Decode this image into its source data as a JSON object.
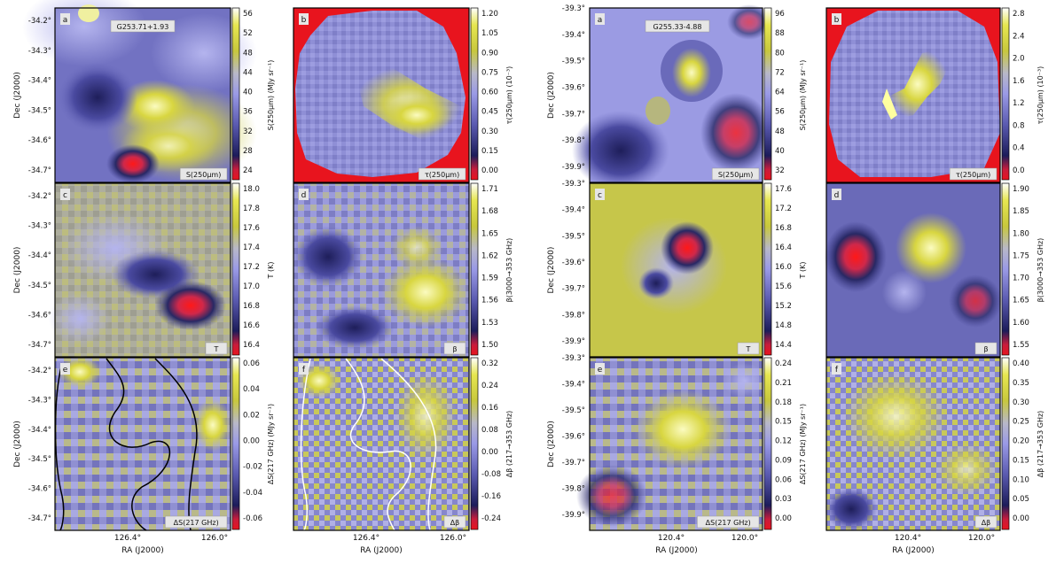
{
  "figure": {
    "left_group": {
      "field_label": "G253.71+1.93",
      "ylabel": "Dec (J2000)",
      "xlabel": "RA (J2000)",
      "y_ticks": [
        "-34.2°",
        "-34.3°",
        "-34.4°",
        "-34.5°",
        "-34.6°",
        "-34.7°"
      ],
      "x_ticks": [
        "126.4°",
        "126.0°"
      ]
    },
    "right_group": {
      "field_label": "G255.33-4.88",
      "ylabel": "Dec (J2000)",
      "xlabel": "RA (J2000)",
      "y_ticks_row1": [
        "-39.3°",
        "-39.4°",
        "-39.5°",
        "-39.6°",
        "-39.7°",
        "-39.8°",
        "-39.9°"
      ],
      "y_ticks_row2": [
        "-39.3°",
        "-39.4°",
        "-39.5°",
        "-39.6°",
        "-39.7°",
        "-39.8°",
        "-39.9°"
      ],
      "y_ticks_row3": [
        "-39.3°",
        "-39.4°",
        "-39.5°",
        "-39.6°",
        "-39.7°",
        "-39.8°",
        "-39.9°"
      ],
      "x_ticks": [
        "120.4°",
        "120.0°"
      ]
    }
  },
  "chart_data": [
    {
      "type": "heatmap",
      "panel": "a",
      "field": "G253.71+1.93",
      "tag": "S(250μm)",
      "colorbar_label": "S(250μm) (MJy sr⁻¹)",
      "colorbar_ticks": [
        "56",
        "52",
        "48",
        "44",
        "40",
        "36",
        "32",
        "28",
        "24"
      ]
    },
    {
      "type": "heatmap",
      "panel": "b",
      "field": "G253.71+1.93",
      "tag": "τ(250μm)",
      "colorbar_label": "τ(250μm) (10⁻³)",
      "colorbar_ticks": [
        "1.20",
        "1.05",
        "0.90",
        "0.75",
        "0.60",
        "0.45",
        "0.30",
        "0.15",
        "0.00"
      ]
    },
    {
      "type": "heatmap",
      "panel": "c",
      "field": "G253.71+1.93",
      "tag": "T",
      "colorbar_label": "T (K)",
      "colorbar_ticks": [
        "18.0",
        "17.8",
        "17.6",
        "17.4",
        "17.2",
        "17.0",
        "16.8",
        "16.6",
        "16.4"
      ]
    },
    {
      "type": "heatmap",
      "panel": "d",
      "field": "G253.71+1.93",
      "tag": "β",
      "colorbar_label": "β(3000→353 GHz)",
      "colorbar_ticks": [
        "1.71",
        "1.68",
        "1.65",
        "1.62",
        "1.59",
        "1.56",
        "1.53",
        "1.50"
      ]
    },
    {
      "type": "heatmap",
      "panel": "e",
      "field": "G253.71+1.93",
      "tag": "ΔS(217 GHz)",
      "colorbar_label": "ΔS(217 GHz) (MJy sr⁻¹)",
      "colorbar_ticks": [
        "0.06",
        "0.04",
        "0.02",
        "0.00",
        "-0.02",
        "-0.04",
        "-0.06"
      ]
    },
    {
      "type": "heatmap",
      "panel": "f",
      "field": "G253.71+1.93",
      "tag": "Δβ",
      "colorbar_label": "Δβ (217→353 GHz)",
      "colorbar_ticks": [
        "0.32",
        "0.24",
        "0.16",
        "0.08",
        "0.00",
        "-0.08",
        "-0.16",
        "-0.24"
      ]
    },
    {
      "type": "heatmap",
      "panel": "a",
      "field": "G255.33-4.88",
      "tag": "S(250μm)",
      "colorbar_label": "S(250μm) (MJy sr⁻¹)",
      "colorbar_ticks": [
        "96",
        "88",
        "80",
        "72",
        "64",
        "56",
        "48",
        "40",
        "32"
      ]
    },
    {
      "type": "heatmap",
      "panel": "b",
      "field": "G255.33-4.88",
      "tag": "τ(250μm)",
      "colorbar_label": "τ(250μm) (10⁻³)",
      "colorbar_ticks": [
        "2.8",
        "2.4",
        "2.0",
        "1.6",
        "1.2",
        "0.8",
        "0.4",
        "0.0"
      ]
    },
    {
      "type": "heatmap",
      "panel": "c",
      "field": "G255.33-4.88",
      "tag": "T",
      "colorbar_label": "T (K)",
      "colorbar_ticks": [
        "17.6",
        "17.2",
        "16.8",
        "16.4",
        "16.0",
        "15.6",
        "15.2",
        "14.8",
        "14.4"
      ]
    },
    {
      "type": "heatmap",
      "panel": "d",
      "field": "G255.33-4.88",
      "tag": "β",
      "colorbar_label": "β(3000→353 GHz)",
      "colorbar_ticks": [
        "1.90",
        "1.85",
        "1.80",
        "1.75",
        "1.70",
        "1.65",
        "1.60",
        "1.55"
      ]
    },
    {
      "type": "heatmap",
      "panel": "e",
      "field": "G255.33-4.88",
      "tag": "ΔS(217 GHz)",
      "colorbar_label": "ΔS(217 GHz) (MJy sr⁻¹)",
      "colorbar_ticks": [
        "0.24",
        "0.21",
        "0.18",
        "0.15",
        "0.12",
        "0.09",
        "0.06",
        "0.03",
        "0.00"
      ]
    },
    {
      "type": "heatmap",
      "panel": "f",
      "field": "G255.33-4.88",
      "tag": "Δβ",
      "colorbar_label": "Δβ (217→353 GHz)",
      "colorbar_ticks": [
        "0.40",
        "0.35",
        "0.30",
        "0.25",
        "0.20",
        "0.15",
        "0.10",
        "0.05",
        "0.00"
      ]
    }
  ]
}
